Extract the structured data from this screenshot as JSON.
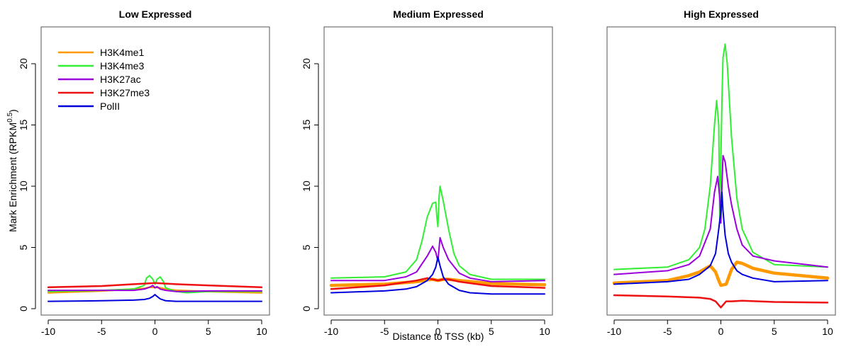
{
  "chart_data": [
    {
      "type": "line",
      "title": "Low Expressed",
      "xlabel": "",
      "ylabel": "Mark Enrichment (RPKM",
      "ylabel_sup": "0.5",
      "ylabel_close": ")",
      "xlim": [
        -10,
        10
      ],
      "ylim": [
        0,
        22
      ],
      "xticks": [
        -10,
        -5,
        0,
        5,
        10
      ],
      "yticks": [
        0,
        5,
        10,
        15,
        20
      ],
      "show_yaxis": true,
      "grid": false,
      "legend": "top-left",
      "series": [
        {
          "name": "H3K4me1",
          "color": "#FF9900",
          "width": 2.5,
          "x": [
            -10,
            -5,
            -2,
            -1,
            -0.5,
            0,
            0.5,
            1,
            2,
            5,
            10
          ],
          "y": [
            1.3,
            1.45,
            1.6,
            1.65,
            1.75,
            1.75,
            1.7,
            1.6,
            1.5,
            1.4,
            1.3
          ]
        },
        {
          "name": "H3K4me3",
          "color": "#33EE33",
          "width": 2,
          "x": [
            -10,
            -5,
            -2,
            -1,
            -0.8,
            -0.5,
            -0.2,
            0,
            0.2,
            0.5,
            0.8,
            1,
            2,
            3,
            5,
            10
          ],
          "y": [
            1.4,
            1.5,
            1.6,
            1.9,
            2.5,
            2.7,
            2.4,
            2.0,
            2.4,
            2.6,
            2.2,
            1.7,
            1.4,
            1.3,
            1.4,
            1.4
          ]
        },
        {
          "name": "H3K27ac",
          "color": "#9900DD",
          "width": 2,
          "x": [
            -10,
            -5,
            -2,
            -1,
            -0.5,
            -0.2,
            0,
            0.2,
            0.5,
            1,
            2,
            5,
            10
          ],
          "y": [
            1.5,
            1.5,
            1.5,
            1.6,
            1.75,
            1.9,
            1.7,
            1.8,
            1.6,
            1.5,
            1.4,
            1.45,
            1.45
          ]
        },
        {
          "name": "H3K27me3",
          "color": "#EE1111",
          "width": 2.5,
          "x": [
            -10,
            -5,
            -2,
            0,
            2,
            5,
            10
          ],
          "y": [
            1.75,
            1.85,
            2.0,
            2.1,
            2.0,
            1.9,
            1.75
          ]
        },
        {
          "name": "PolII",
          "color": "#0000DD",
          "width": 2,
          "x": [
            -10,
            -5,
            -2,
            -1,
            -0.5,
            -0.2,
            0,
            0.2,
            0.5,
            1,
            2,
            5,
            10
          ],
          "y": [
            0.6,
            0.65,
            0.7,
            0.75,
            0.85,
            1.0,
            1.15,
            1.0,
            0.8,
            0.65,
            0.6,
            0.6,
            0.6
          ]
        }
      ]
    },
    {
      "type": "line",
      "title": "Medium Expressed",
      "xlabel": "Distance to TSS (kb)",
      "ylabel": "",
      "xlim": [
        -10,
        10
      ],
      "ylim": [
        0,
        22
      ],
      "xticks": [
        -10,
        -5,
        0,
        5,
        10
      ],
      "yticks": [
        0,
        5,
        10,
        15,
        20
      ],
      "show_yaxis": true,
      "grid": false,
      "series": [
        {
          "name": "H3K4me1",
          "color": "#FF9900",
          "width": 4.5,
          "x": [
            -10,
            -5,
            -2,
            -1,
            -0.5,
            0,
            0.5,
            1,
            2,
            5,
            10
          ],
          "y": [
            1.9,
            2.0,
            2.2,
            2.35,
            2.4,
            2.3,
            2.4,
            2.4,
            2.3,
            2.05,
            1.95
          ]
        },
        {
          "name": "H3K4me3",
          "color": "#33EE33",
          "width": 2,
          "x": [
            -10,
            -5,
            -3,
            -2,
            -1.5,
            -1,
            -0.5,
            -0.2,
            -0.1,
            0,
            0.1,
            0.2,
            0.5,
            1,
            1.5,
            2,
            3,
            5,
            10
          ],
          "y": [
            2.5,
            2.6,
            3.0,
            4.0,
            5.5,
            7.5,
            8.6,
            8.7,
            7.5,
            6.7,
            9.0,
            10.0,
            8.8,
            6.5,
            4.5,
            3.5,
            2.8,
            2.4,
            2.4
          ]
        },
        {
          "name": "H3K27ac",
          "color": "#9900DD",
          "width": 2,
          "x": [
            -10,
            -5,
            -3,
            -2,
            -1,
            -0.5,
            -0.2,
            0,
            0.2,
            0.5,
            1,
            2,
            3,
            5,
            10
          ],
          "y": [
            2.3,
            2.3,
            2.6,
            3.0,
            4.3,
            5.1,
            4.6,
            3.9,
            5.8,
            5.0,
            4.0,
            2.9,
            2.5,
            2.2,
            2.3
          ]
        },
        {
          "name": "H3K27me3",
          "color": "#EE1111",
          "width": 2.5,
          "x": [
            -10,
            -5,
            -2,
            -1,
            0,
            0.5,
            1,
            2,
            5,
            10
          ],
          "y": [
            1.6,
            1.9,
            2.3,
            2.5,
            2.3,
            2.4,
            2.4,
            2.2,
            1.85,
            1.7
          ]
        },
        {
          "name": "PolII",
          "color": "#0000DD",
          "width": 2,
          "x": [
            -10,
            -5,
            -3,
            -2,
            -1,
            -0.5,
            -0.2,
            0,
            0.2,
            0.5,
            1,
            2,
            3,
            5,
            10
          ],
          "y": [
            1.3,
            1.45,
            1.6,
            1.8,
            2.3,
            2.8,
            3.4,
            4.2,
            3.5,
            2.6,
            2.0,
            1.5,
            1.3,
            1.2,
            1.2
          ]
        }
      ]
    },
    {
      "type": "line",
      "title": "High Expressed",
      "xlabel": "",
      "ylabel": "",
      "xlim": [
        -10,
        10
      ],
      "ylim": [
        0,
        22
      ],
      "xticks": [
        -10,
        -5,
        0,
        5,
        10
      ],
      "yticks": [],
      "show_yaxis": false,
      "grid": false,
      "series": [
        {
          "name": "H3K4me1",
          "color": "#FF9900",
          "width": 4.5,
          "x": [
            -10,
            -5,
            -3,
            -2,
            -1,
            -0.5,
            -0.2,
            0,
            0.5,
            1,
            1.5,
            2,
            3,
            5,
            10
          ],
          "y": [
            2.1,
            2.3,
            2.7,
            3.0,
            3.5,
            3.0,
            2.3,
            1.9,
            2.0,
            3.2,
            3.8,
            3.7,
            3.3,
            2.9,
            2.5
          ]
        },
        {
          "name": "H3K4me3",
          "color": "#33EE33",
          "width": 2,
          "x": [
            -10,
            -5,
            -3,
            -2,
            -1.5,
            -1,
            -0.6,
            -0.4,
            -0.2,
            -0.1,
            0,
            0.1,
            0.2,
            0.4,
            0.6,
            0.8,
            1,
            1.5,
            2,
            3,
            5,
            10
          ],
          "y": [
            3.2,
            3.4,
            4.0,
            5.0,
            6.5,
            10.0,
            15.0,
            17.0,
            15.0,
            7.0,
            12.0,
            17.0,
            20.5,
            21.6,
            20.0,
            17.0,
            14.0,
            9.0,
            6.5,
            4.6,
            3.6,
            3.4
          ]
        },
        {
          "name": "H3K27ac",
          "color": "#9900DD",
          "width": 2,
          "x": [
            -10,
            -5,
            -3,
            -2,
            -1,
            -0.6,
            -0.3,
            -0.1,
            0,
            0.1,
            0.2,
            0.4,
            0.7,
            1,
            1.5,
            2,
            3,
            5,
            10
          ],
          "y": [
            2.8,
            3.1,
            3.6,
            4.3,
            6.5,
            9.5,
            10.8,
            9.0,
            7.0,
            10.0,
            12.5,
            12.0,
            10.0,
            8.5,
            6.5,
            5.2,
            4.3,
            3.9,
            3.4
          ]
        },
        {
          "name": "H3K27me3",
          "color": "#EE1111",
          "width": 2.5,
          "x": [
            -10,
            -5,
            -2,
            -1,
            -0.5,
            -0.2,
            0,
            0.2,
            0.5,
            1,
            2,
            5,
            10
          ],
          "y": [
            1.1,
            1.0,
            0.9,
            0.8,
            0.6,
            0.3,
            0.1,
            0.3,
            0.6,
            0.6,
            0.65,
            0.55,
            0.5
          ]
        },
        {
          "name": "PolII",
          "color": "#0000DD",
          "width": 2,
          "x": [
            -10,
            -5,
            -3,
            -2,
            -1,
            -0.5,
            -0.2,
            0,
            0.1,
            0.2,
            0.4,
            0.7,
            1,
            1.5,
            2,
            3,
            5,
            10
          ],
          "y": [
            2.0,
            2.2,
            2.4,
            2.8,
            3.5,
            4.5,
            6.5,
            8.0,
            9.5,
            8.0,
            6.0,
            4.5,
            3.8,
            3.1,
            2.8,
            2.5,
            2.2,
            2.3
          ]
        }
      ]
    }
  ]
}
